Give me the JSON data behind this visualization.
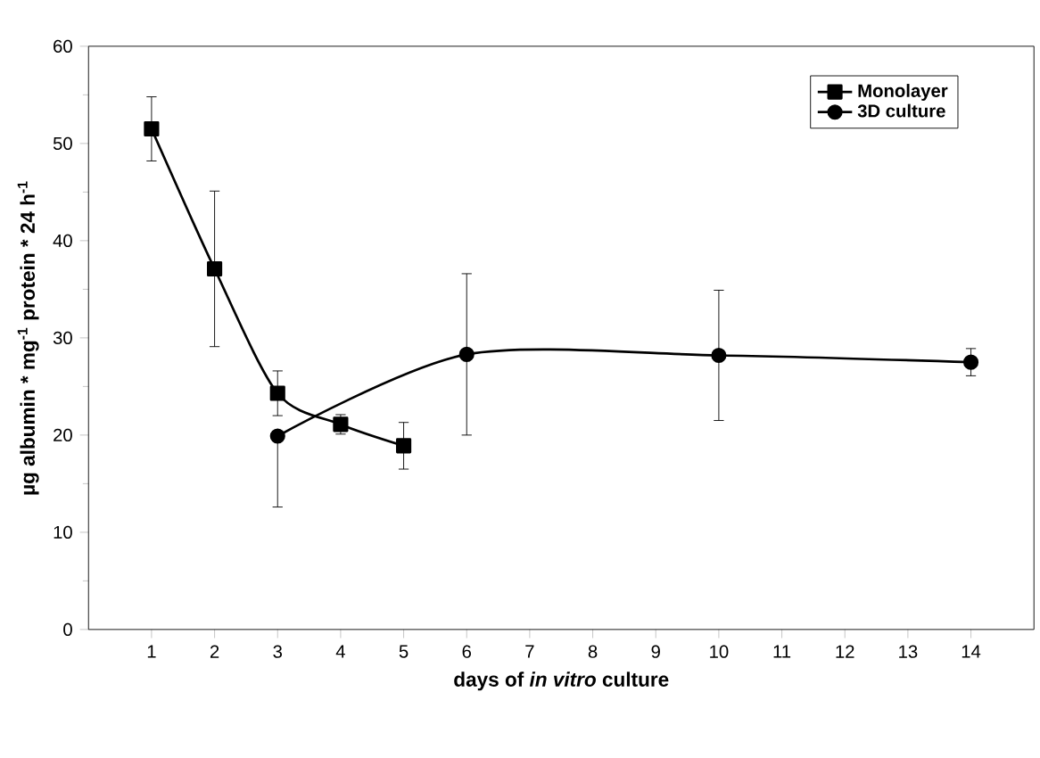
{
  "chart_data": {
    "type": "line",
    "xlabel": "days of *in vitro* culture",
    "ylabel": "µg albumin * mg$^{-1}$ protein * 24 h$^{-1}$",
    "xlim": [
      0,
      15
    ],
    "xticks": [
      1,
      2,
      3,
      4,
      5,
      6,
      7,
      8,
      9,
      10,
      11,
      12,
      13,
      14
    ],
    "ylim": [
      0,
      60
    ],
    "yticks": [
      0,
      10,
      20,
      30,
      40,
      50,
      60
    ],
    "grid": false,
    "legend": "top right",
    "line_style": "solid",
    "series": [
      {
        "name": "Monolayer",
        "color": "#000000",
        "marker": "square",
        "x": [
          1,
          2,
          3,
          4,
          5
        ],
        "values": [
          51.5,
          37.1,
          24.3,
          21.1,
          18.9
        ],
        "errors": [
          3.3,
          8,
          2.3,
          1,
          2.4
        ]
      },
      {
        "name": "3D culture",
        "color": "#000000",
        "marker": "circle",
        "x": [
          3,
          6,
          10,
          14
        ],
        "values": [
          19.9,
          28.3,
          28.2,
          27.5
        ],
        "errors": [
          [
            12.6,
            19.9
          ],
          8.3,
          6.7,
          1.4
        ]
      }
    ]
  }
}
